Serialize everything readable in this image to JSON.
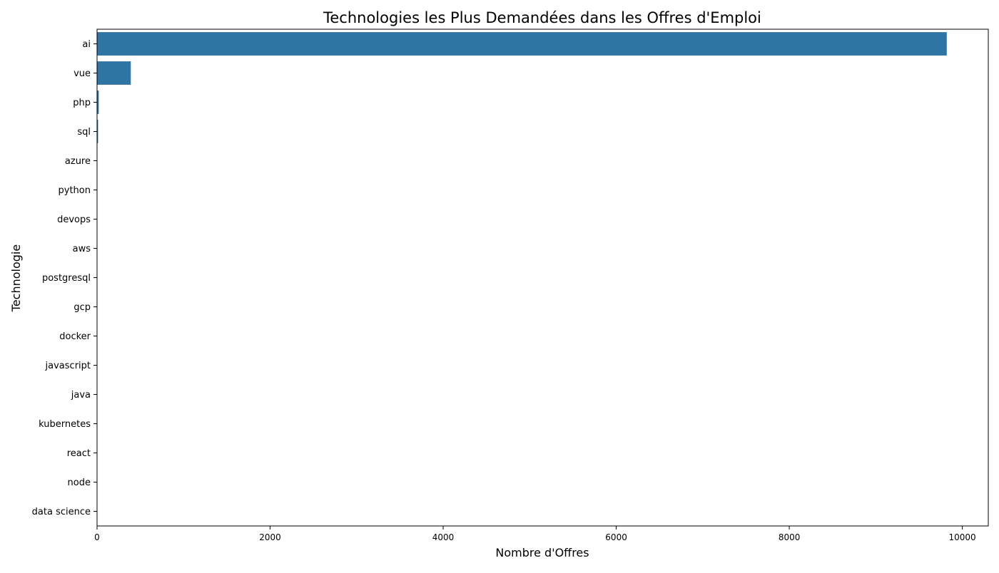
{
  "chart_data": {
    "type": "bar",
    "orientation": "horizontal",
    "title": "Technologies les Plus Demandées dans les Offres d'Emploi",
    "xlabel": "Nombre d'Offres",
    "ylabel": "Technologie",
    "categories": [
      "ai",
      "vue",
      "php",
      "sql",
      "azure",
      "python",
      "devops",
      "aws",
      "postgresql",
      "gcp",
      "docker",
      "javascript",
      "java",
      "kubernetes",
      "react",
      "node",
      "data science"
    ],
    "values": [
      9820,
      390,
      20,
      12,
      3,
      2,
      2,
      2,
      1,
      1,
      1,
      1,
      1,
      1,
      1,
      1,
      1
    ],
    "xlim": [
      0,
      10300
    ],
    "xticks": [
      0,
      2000,
      4000,
      6000,
      8000,
      10000
    ],
    "xtick_labels": [
      "0",
      "2000",
      "4000",
      "6000",
      "8000",
      "10000"
    ],
    "grid": false,
    "legend": "none",
    "bar_color": "#2e75a3"
  }
}
